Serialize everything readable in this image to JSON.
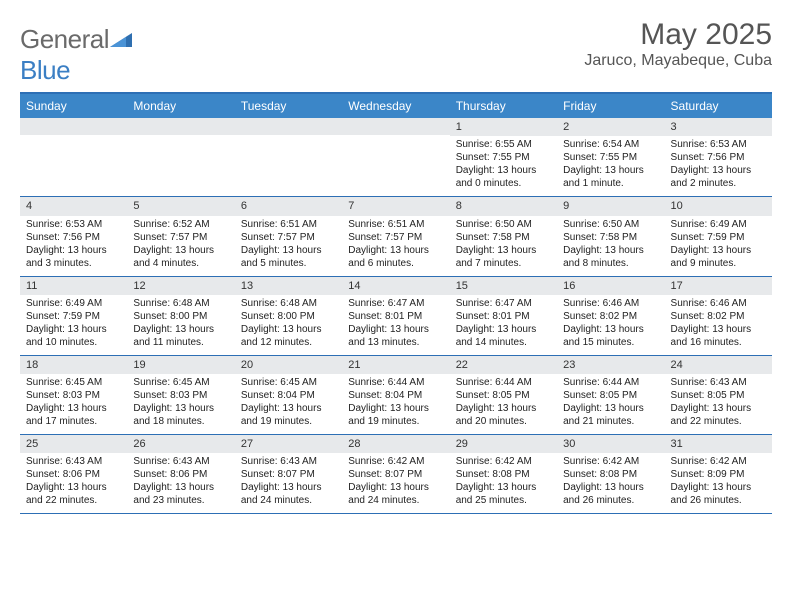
{
  "brand": {
    "name_gray": "General",
    "name_blue": "Blue"
  },
  "title": "May 2025",
  "location": "Jaruco, Mayabeque, Cuba",
  "colors": {
    "header_bg": "#3b86c8",
    "header_border": "#2d6fb5",
    "daynum_bg": "#e7e9eb",
    "text": "#333333",
    "title_text": "#555555",
    "logo_gray": "#6a6a6a",
    "logo_blue": "#3b7fc4"
  },
  "day_names": [
    "Sunday",
    "Monday",
    "Tuesday",
    "Wednesday",
    "Thursday",
    "Friday",
    "Saturday"
  ],
  "weeks": [
    [
      {
        "n": "",
        "sr": "",
        "ss": "",
        "dl": ""
      },
      {
        "n": "",
        "sr": "",
        "ss": "",
        "dl": ""
      },
      {
        "n": "",
        "sr": "",
        "ss": "",
        "dl": ""
      },
      {
        "n": "",
        "sr": "",
        "ss": "",
        "dl": ""
      },
      {
        "n": "1",
        "sr": "Sunrise: 6:55 AM",
        "ss": "Sunset: 7:55 PM",
        "dl": "Daylight: 13 hours and 0 minutes."
      },
      {
        "n": "2",
        "sr": "Sunrise: 6:54 AM",
        "ss": "Sunset: 7:55 PM",
        "dl": "Daylight: 13 hours and 1 minute."
      },
      {
        "n": "3",
        "sr": "Sunrise: 6:53 AM",
        "ss": "Sunset: 7:56 PM",
        "dl": "Daylight: 13 hours and 2 minutes."
      }
    ],
    [
      {
        "n": "4",
        "sr": "Sunrise: 6:53 AM",
        "ss": "Sunset: 7:56 PM",
        "dl": "Daylight: 13 hours and 3 minutes."
      },
      {
        "n": "5",
        "sr": "Sunrise: 6:52 AM",
        "ss": "Sunset: 7:57 PM",
        "dl": "Daylight: 13 hours and 4 minutes."
      },
      {
        "n": "6",
        "sr": "Sunrise: 6:51 AM",
        "ss": "Sunset: 7:57 PM",
        "dl": "Daylight: 13 hours and 5 minutes."
      },
      {
        "n": "7",
        "sr": "Sunrise: 6:51 AM",
        "ss": "Sunset: 7:57 PM",
        "dl": "Daylight: 13 hours and 6 minutes."
      },
      {
        "n": "8",
        "sr": "Sunrise: 6:50 AM",
        "ss": "Sunset: 7:58 PM",
        "dl": "Daylight: 13 hours and 7 minutes."
      },
      {
        "n": "9",
        "sr": "Sunrise: 6:50 AM",
        "ss": "Sunset: 7:58 PM",
        "dl": "Daylight: 13 hours and 8 minutes."
      },
      {
        "n": "10",
        "sr": "Sunrise: 6:49 AM",
        "ss": "Sunset: 7:59 PM",
        "dl": "Daylight: 13 hours and 9 minutes."
      }
    ],
    [
      {
        "n": "11",
        "sr": "Sunrise: 6:49 AM",
        "ss": "Sunset: 7:59 PM",
        "dl": "Daylight: 13 hours and 10 minutes."
      },
      {
        "n": "12",
        "sr": "Sunrise: 6:48 AM",
        "ss": "Sunset: 8:00 PM",
        "dl": "Daylight: 13 hours and 11 minutes."
      },
      {
        "n": "13",
        "sr": "Sunrise: 6:48 AM",
        "ss": "Sunset: 8:00 PM",
        "dl": "Daylight: 13 hours and 12 minutes."
      },
      {
        "n": "14",
        "sr": "Sunrise: 6:47 AM",
        "ss": "Sunset: 8:01 PM",
        "dl": "Daylight: 13 hours and 13 minutes."
      },
      {
        "n": "15",
        "sr": "Sunrise: 6:47 AM",
        "ss": "Sunset: 8:01 PM",
        "dl": "Daylight: 13 hours and 14 minutes."
      },
      {
        "n": "16",
        "sr": "Sunrise: 6:46 AM",
        "ss": "Sunset: 8:02 PM",
        "dl": "Daylight: 13 hours and 15 minutes."
      },
      {
        "n": "17",
        "sr": "Sunrise: 6:46 AM",
        "ss": "Sunset: 8:02 PM",
        "dl": "Daylight: 13 hours and 16 minutes."
      }
    ],
    [
      {
        "n": "18",
        "sr": "Sunrise: 6:45 AM",
        "ss": "Sunset: 8:03 PM",
        "dl": "Daylight: 13 hours and 17 minutes."
      },
      {
        "n": "19",
        "sr": "Sunrise: 6:45 AM",
        "ss": "Sunset: 8:03 PM",
        "dl": "Daylight: 13 hours and 18 minutes."
      },
      {
        "n": "20",
        "sr": "Sunrise: 6:45 AM",
        "ss": "Sunset: 8:04 PM",
        "dl": "Daylight: 13 hours and 19 minutes."
      },
      {
        "n": "21",
        "sr": "Sunrise: 6:44 AM",
        "ss": "Sunset: 8:04 PM",
        "dl": "Daylight: 13 hours and 19 minutes."
      },
      {
        "n": "22",
        "sr": "Sunrise: 6:44 AM",
        "ss": "Sunset: 8:05 PM",
        "dl": "Daylight: 13 hours and 20 minutes."
      },
      {
        "n": "23",
        "sr": "Sunrise: 6:44 AM",
        "ss": "Sunset: 8:05 PM",
        "dl": "Daylight: 13 hours and 21 minutes."
      },
      {
        "n": "24",
        "sr": "Sunrise: 6:43 AM",
        "ss": "Sunset: 8:05 PM",
        "dl": "Daylight: 13 hours and 22 minutes."
      }
    ],
    [
      {
        "n": "25",
        "sr": "Sunrise: 6:43 AM",
        "ss": "Sunset: 8:06 PM",
        "dl": "Daylight: 13 hours and 22 minutes."
      },
      {
        "n": "26",
        "sr": "Sunrise: 6:43 AM",
        "ss": "Sunset: 8:06 PM",
        "dl": "Daylight: 13 hours and 23 minutes."
      },
      {
        "n": "27",
        "sr": "Sunrise: 6:43 AM",
        "ss": "Sunset: 8:07 PM",
        "dl": "Daylight: 13 hours and 24 minutes."
      },
      {
        "n": "28",
        "sr": "Sunrise: 6:42 AM",
        "ss": "Sunset: 8:07 PM",
        "dl": "Daylight: 13 hours and 24 minutes."
      },
      {
        "n": "29",
        "sr": "Sunrise: 6:42 AM",
        "ss": "Sunset: 8:08 PM",
        "dl": "Daylight: 13 hours and 25 minutes."
      },
      {
        "n": "30",
        "sr": "Sunrise: 6:42 AM",
        "ss": "Sunset: 8:08 PM",
        "dl": "Daylight: 13 hours and 26 minutes."
      },
      {
        "n": "31",
        "sr": "Sunrise: 6:42 AM",
        "ss": "Sunset: 8:09 PM",
        "dl": "Daylight: 13 hours and 26 minutes."
      }
    ]
  ]
}
